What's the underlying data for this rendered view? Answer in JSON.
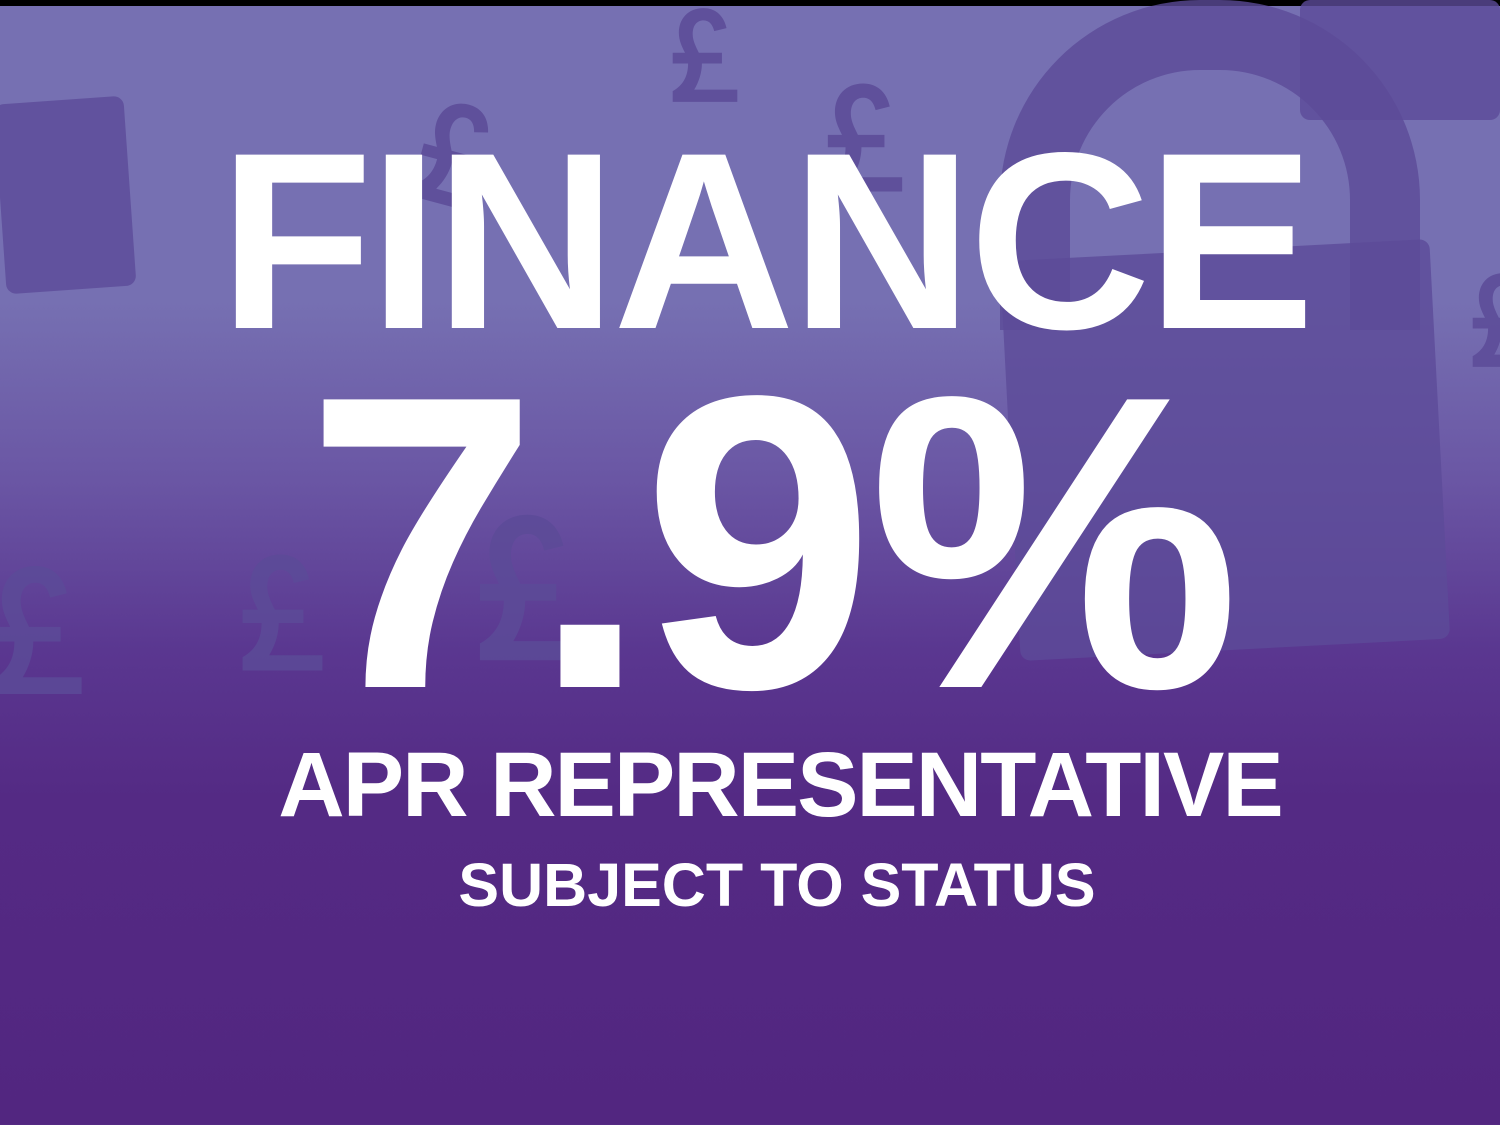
{
  "headline": "FINANCE",
  "rate": "7.9%",
  "rate_label": "APR REPRESENTATIVE",
  "disclaimer": "SUBJECT TO STATUS",
  "background_icons": [
    "pound-sign-icon",
    "padlock-icon"
  ],
  "colors": {
    "background_top": "#7670b2",
    "background_bottom": "#522680",
    "icon": "#5c4b98",
    "text": "#ffffff"
  }
}
